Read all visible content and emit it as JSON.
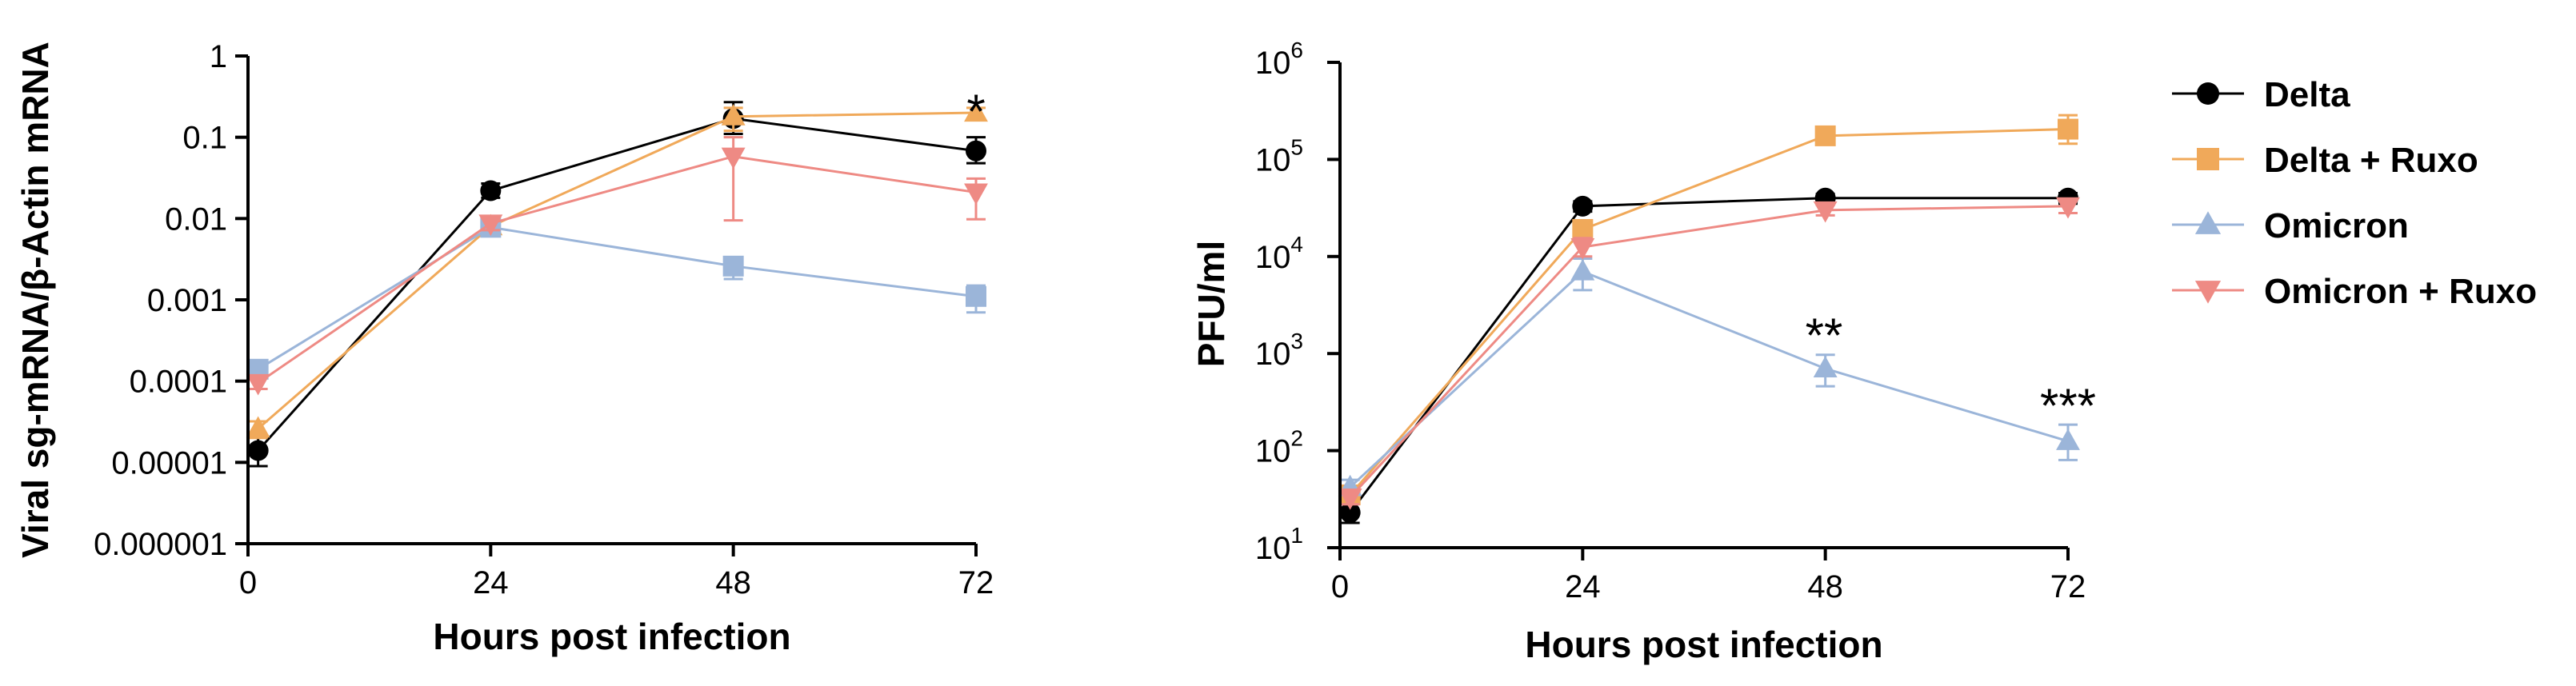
{
  "chart_data": [
    {
      "type": "line",
      "title": "",
      "xlabel": "Hours post infection",
      "ylabel": "Viral sg-mRNA/β-Actin mRNA",
      "yscale": "log",
      "xlim": [
        0,
        72
      ],
      "ylim": [
        1e-06,
        1
      ],
      "x_ticks": [
        0,
        24,
        48,
        72
      ],
      "x_tick_labels": [
        "0",
        "24",
        "48",
        "72"
      ],
      "y_ticks": [
        1,
        0.1,
        0.01,
        0.001,
        0.0001,
        1e-05,
        1e-06
      ],
      "y_tick_labels": [
        "1",
        "0.1",
        "0.01",
        "0.001",
        "0.0001",
        "0.00001",
        "0.000001"
      ],
      "grid": false,
      "series": [
        {
          "series_key": "delta",
          "color": "#000000",
          "marker": "circle",
          "x": [
            1,
            24,
            48,
            72
          ],
          "y": [
            1.4e-05,
            0.022,
            0.17,
            0.068
          ],
          "err_low": [
            9e-06,
            0.018,
            0.11,
            0.048
          ],
          "err_high": [
            2.1e-05,
            0.027,
            0.27,
            0.1
          ]
        },
        {
          "series_key": "delta_ruxo",
          "color": "#F0A95A",
          "marker": "triangle-up",
          "x": [
            1,
            24,
            48,
            72
          ],
          "y": [
            2.6e-05,
            0.008,
            0.18,
            0.2
          ],
          "err_low": [
            2e-05,
            0.0065,
            0.12,
            0.17
          ],
          "err_high": [
            3.2e-05,
            0.0098,
            0.23,
            0.23
          ]
        },
        {
          "series_key": "omicron",
          "color": "#9BB5D9",
          "marker": "square",
          "x": [
            1,
            24,
            48,
            72
          ],
          "y": [
            0.00014,
            0.0078,
            0.0026,
            0.0011
          ],
          "err_low": [
            0.00012,
            0.0065,
            0.0018,
            0.0007
          ],
          "err_high": [
            0.00016,
            0.0094,
            0.0033,
            0.0015
          ]
        },
        {
          "series_key": "omicron_ruxo",
          "color": "#EE8A84",
          "marker": "triangle-down",
          "x": [
            1,
            24,
            48,
            72
          ],
          "y": [
            9.5e-05,
            0.0087,
            0.058,
            0.021
          ],
          "err_low": [
            8e-05,
            0.0072,
            0.0095,
            0.0098
          ],
          "err_high": [
            0.00011,
            0.0105,
            0.1,
            0.031
          ]
        }
      ],
      "annotations": [
        {
          "text": "*",
          "x": 72
        }
      ]
    },
    {
      "type": "line",
      "title": "",
      "xlabel": "Hours post infection",
      "ylabel": "PFU/ml",
      "yscale": "log",
      "xlim": [
        0,
        72
      ],
      "ylim": [
        10,
        1000000
      ],
      "x_ticks": [
        0,
        24,
        48,
        72
      ],
      "x_tick_labels": [
        "0",
        "24",
        "48",
        "72"
      ],
      "y_ticks": [
        10,
        100,
        1000,
        10000,
        100000,
        1000000
      ],
      "y_tick_bases": [
        "10",
        "10",
        "10",
        "10",
        "10",
        "10"
      ],
      "y_tick_exponents": [
        "1",
        "2",
        "3",
        "4",
        "5",
        "6"
      ],
      "grid": false,
      "legend_position": "right",
      "series": [
        {
          "name": "Delta",
          "color": "#000000",
          "marker": "circle",
          "x": [
            1,
            24,
            48,
            72
          ],
          "y": [
            23,
            33000,
            40000,
            40000
          ],
          "err_low": [
            18,
            29000,
            36000,
            35000
          ],
          "err_high": [
            29,
            37000,
            44000,
            45000
          ]
        },
        {
          "name": "Delta + Ruxo",
          "color": "#F0A95A",
          "marker": "square",
          "x": [
            1,
            24,
            48,
            72
          ],
          "y": [
            35,
            19000,
            175000,
            205000
          ],
          "err_low": [
            30,
            15000,
            155000,
            145000
          ],
          "err_high": [
            40,
            23000,
            195000,
            285000
          ]
        },
        {
          "name": "Omicron",
          "color": "#9BB5D9",
          "marker": "triangle-up",
          "x": [
            1,
            24,
            48,
            72
          ],
          "y": [
            42,
            7000,
            700,
            125
          ],
          "err_low": [
            35,
            4500,
            460,
            80
          ],
          "err_high": [
            50,
            9500,
            970,
            185
          ]
        },
        {
          "name": "Omicron + Ruxo",
          "color": "#EE8A84",
          "marker": "triangle-down",
          "x": [
            1,
            24,
            48,
            72
          ],
          "y": [
            33,
            12500,
            30000,
            33000
          ],
          "err_low": [
            28,
            10000,
            26500,
            28000
          ],
          "err_high": [
            38,
            15500,
            34000,
            39000
          ]
        }
      ],
      "annotations": [
        {
          "text": "**",
          "x": 48
        },
        {
          "text": "***",
          "x": 72
        }
      ]
    }
  ]
}
